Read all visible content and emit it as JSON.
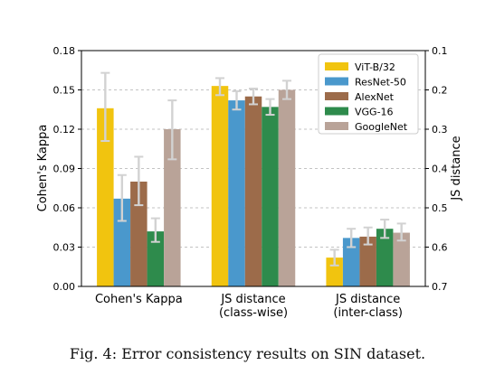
{
  "caption": "Fig. 4: Error consistency results on SIN dataset.",
  "chart_data": {
    "type": "bar",
    "categories": [
      [
        "Cohen's Kappa"
      ],
      [
        "JS distance",
        "(class-wise)"
      ],
      [
        "JS distance",
        "(inter-class)"
      ]
    ],
    "ylabel_left": "Cohen's Kappa",
    "ylabel_right": "JS distance",
    "ylim_left": [
      0.0,
      0.18
    ],
    "ylim_right": [
      0.1,
      0.7
    ],
    "yticks_left": [
      "0.00",
      "0.03",
      "0.06",
      "0.09",
      "0.12",
      "0.15",
      "0.18"
    ],
    "yticks_right": [
      "0.1",
      "0.2",
      "0.3",
      "0.4",
      "0.5",
      "0.6",
      "0.7"
    ],
    "right_axis_inverted": true,
    "grid": "dashed horizontal",
    "legend_position": "top-right",
    "series": [
      {
        "name": "ViT-B/32",
        "color": "#f1c40f",
        "values": [
          0.136,
          0.153,
          0.022
        ],
        "err_low": [
          0.111,
          0.146,
          0.016
        ],
        "err_high": [
          0.163,
          0.159,
          0.028
        ]
      },
      {
        "name": "ResNet-50",
        "color": "#4a98cc",
        "values": [
          0.067,
          0.142,
          0.037
        ],
        "err_low": [
          0.05,
          0.135,
          0.03
        ],
        "err_high": [
          0.085,
          0.149,
          0.044
        ]
      },
      {
        "name": "AlexNet",
        "color": "#9c6b4a",
        "values": [
          0.08,
          0.145,
          0.038
        ],
        "err_low": [
          0.062,
          0.139,
          0.032
        ],
        "err_high": [
          0.099,
          0.151,
          0.045
        ]
      },
      {
        "name": "VGG-16",
        "color": "#2e8b4c",
        "values": [
          0.042,
          0.137,
          0.044
        ],
        "err_low": [
          0.034,
          0.131,
          0.037
        ],
        "err_high": [
          0.052,
          0.143,
          0.051
        ]
      },
      {
        "name": "GoogleNet",
        "color": "#b9a398",
        "values": [
          0.12,
          0.15,
          0.041
        ],
        "err_low": [
          0.097,
          0.143,
          0.035
        ],
        "err_high": [
          0.142,
          0.157,
          0.048
        ]
      }
    ]
  }
}
